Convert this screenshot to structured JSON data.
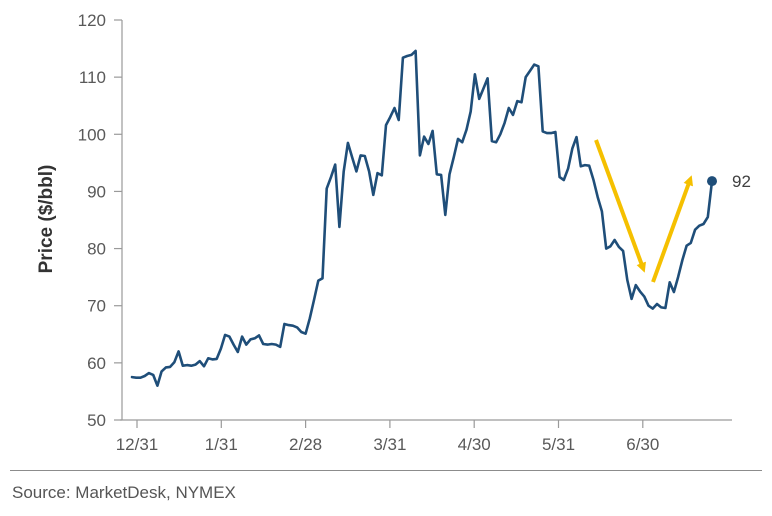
{
  "chart_data": {
    "type": "line",
    "ylabel": "Price ($/bbl)",
    "ylim": [
      50,
      120
    ],
    "yticks": [
      50,
      60,
      70,
      80,
      90,
      100,
      110,
      120
    ],
    "xticks": [
      "12/31",
      "1/31",
      "2/28",
      "3/31",
      "4/30",
      "5/31",
      "6/30"
    ],
    "grid": false,
    "end_label": "92",
    "accent_color": "#1f4e79",
    "arrow_color": "#f5c000",
    "series": [
      {
        "values": [
          57.5,
          57.4,
          57.4,
          57.7,
          58.2,
          57.9,
          56.0,
          58.5,
          59.2,
          59.3,
          60.1,
          62.0,
          59.5,
          59.6,
          59.5,
          59.7,
          60.3,
          59.4,
          60.8,
          60.6,
          60.7,
          62.5,
          64.9,
          64.6,
          63.2,
          61.9,
          64.6,
          63.2,
          64.1,
          64.3,
          64.8,
          63.3,
          63.2,
          63.3,
          63.2,
          62.8,
          66.8,
          66.6,
          66.5,
          66.2,
          65.4,
          65.1,
          67.8,
          71.0,
          74.4,
          74.8,
          90.5,
          92.5,
          94.7,
          83.8,
          93.5,
          98.5,
          96.0,
          93.5,
          96.3,
          96.2,
          93.5,
          89.4,
          93.2,
          92.8,
          101.6,
          103.0,
          104.6,
          102.5,
          113.4,
          113.7,
          113.9,
          114.6,
          96.3,
          99.6,
          98.3,
          100.6,
          93.0,
          92.9,
          85.9,
          93.0,
          96.0,
          99.2,
          98.6,
          100.8,
          104.0,
          110.5,
          106.2,
          108.0,
          109.8,
          98.8,
          98.6,
          100.0,
          102.0,
          104.6,
          103.4,
          105.8,
          105.6,
          110.0,
          111.1,
          112.2,
          111.9,
          100.5,
          100.2,
          100.2,
          100.4,
          92.5,
          92.0,
          94.0,
          97.5,
          99.5,
          94.4,
          94.6,
          94.5,
          92.0,
          89.0,
          86.5,
          80.0,
          80.4,
          81.5,
          80.3,
          79.6,
          74.5,
          71.2,
          73.6,
          72.5,
          71.6,
          70.0,
          69.5,
          70.3,
          69.7,
          69.6,
          74.1,
          72.4,
          75.0,
          78.0,
          80.5,
          81.0,
          83.3,
          84.0,
          84.3,
          85.5,
          91.8
        ]
      }
    ]
  },
  "source": "Source: MarketDesk, NYMEX"
}
